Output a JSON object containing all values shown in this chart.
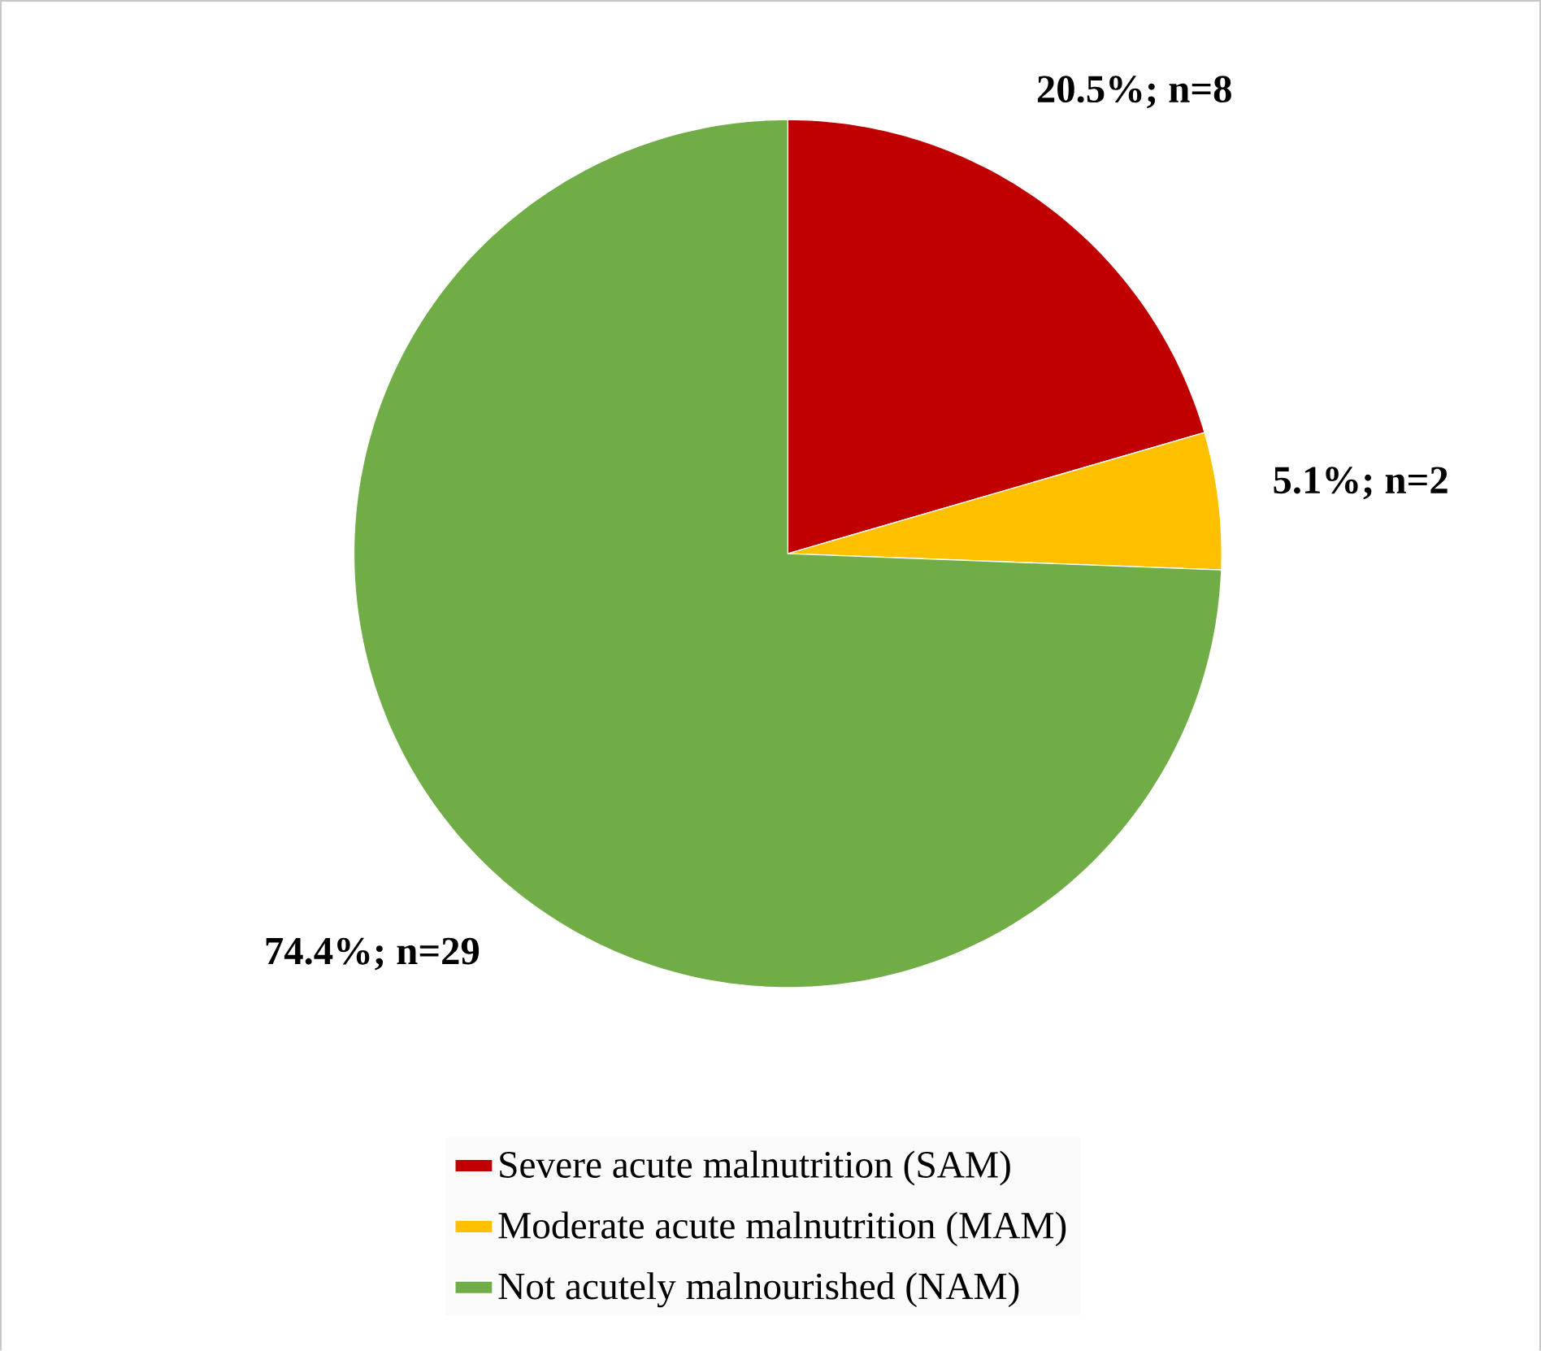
{
  "chart_data": {
    "type": "pie",
    "categories": [
      "Severe acute malnutrition (SAM)",
      "Moderate acute malnutrition (MAM)",
      "Not acutely malnourished (NAM)"
    ],
    "values": [
      20.5,
      5.1,
      74.4
    ],
    "value_labels": [
      "20.5%; n=8",
      "5.1%; n=2",
      "74.4%; n=29"
    ],
    "colors": [
      "#c00000",
      "#ffc000",
      "#70ad47"
    ],
    "legend": "bottom"
  }
}
